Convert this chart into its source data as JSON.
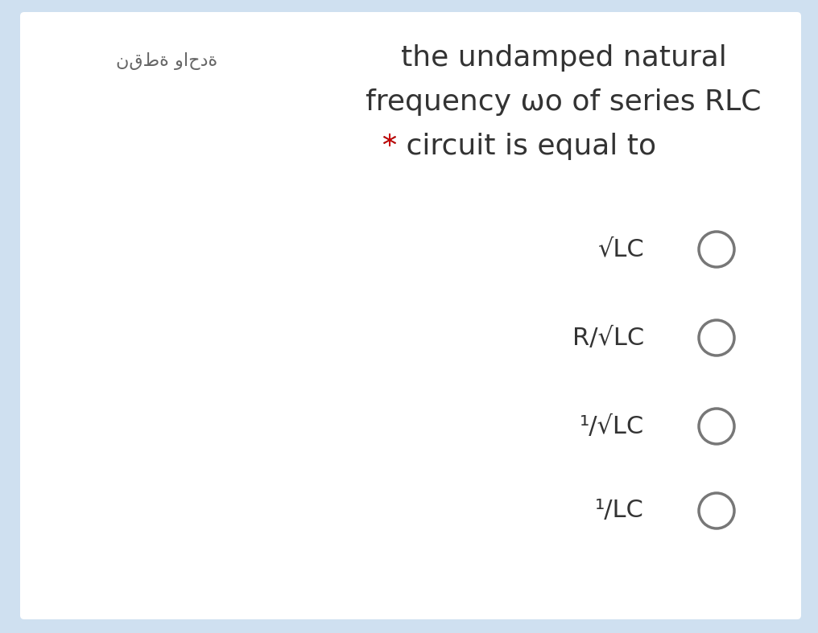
{
  "background_color": "#cfe0f0",
  "card_color": "#ffffff",
  "title_line1": "the undamped natural",
  "title_line2": "frequency ωo of series RLC",
  "title_line3_rest": "circuit is equal to",
  "arabic_label": "نقطة واحدة",
  "options": [
    "√LC",
    "R/√LC",
    "¹/√LC",
    "¹/LC"
  ],
  "star_color": "#cc0000",
  "text_color": "#333333",
  "arabic_color": "#666666",
  "option_text_color": "#333333",
  "circle_edge_color": "#777777",
  "title_fontsize": 26,
  "option_fontsize": 22,
  "arabic_fontsize": 16
}
